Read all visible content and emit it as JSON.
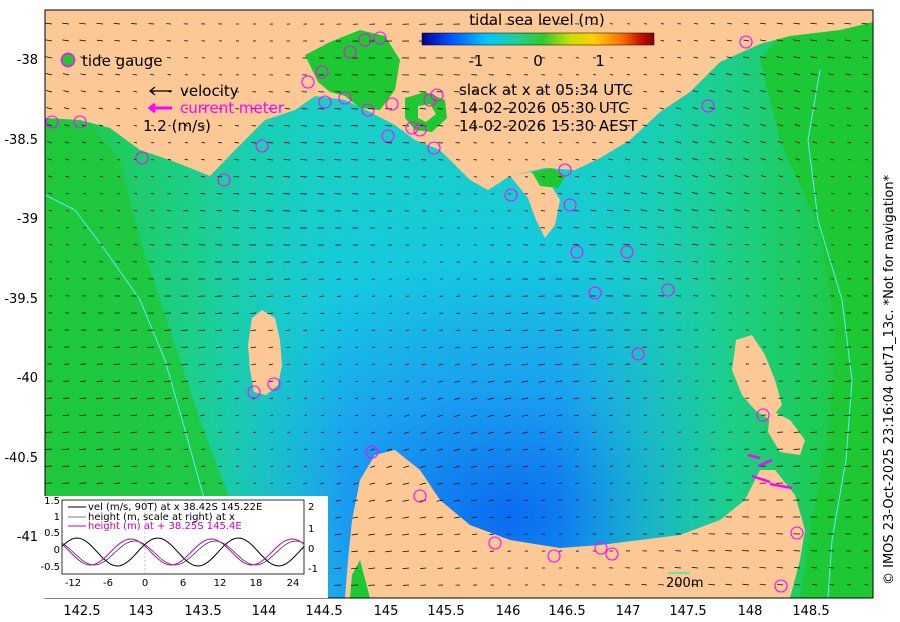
{
  "colorbar": {
    "title": "tidal sea level (m)",
    "ticks": [
      "-1",
      "0",
      "1"
    ],
    "stops": [
      "#00008f",
      "#0050ff",
      "#00c8ff",
      "#1fd08a",
      "#30c830",
      "#c8e000",
      "#ffd000",
      "#ff7000",
      "#c81400",
      "#800000"
    ]
  },
  "legend": {
    "gauge_label": "tide gauge",
    "velocity_label": "velocity",
    "current_meter_label": "current meter",
    "scale_label": "1.2 (m/s)"
  },
  "info": {
    "line1": "slack at x at 05:34 UTC",
    "line2": "14-02-2026 05:30 UTC",
    "line3": "14-02-2026 15:30 AEST"
  },
  "axes": {
    "x_ticks": [
      "142.5",
      "143",
      "143.5",
      "144",
      "144.5",
      "145",
      "145.5",
      "146",
      "146.5",
      "147",
      "147.5",
      "148",
      "148.5"
    ],
    "y_ticks": [
      "-38",
      "-38.5",
      "-39",
      "-39.5",
      "-40",
      "-40.5",
      "-41"
    ]
  },
  "scalebar_label": "200m",
  "credit": "© IMOS 23-Oct-2025 23:16:04 out71_13c. *Not for navigation*",
  "colors": {
    "land": "#fcc896",
    "deep_green": "#1ec832",
    "gauge_ring": "#ff00ff",
    "current": "#ff00ff"
  },
  "inset": {
    "legend": [
      "vel (m/s, 90T) at x 38.42S 145.22E",
      "height (m, scale at right) at x",
      "height (m) at + 38.25S 145.4E"
    ],
    "x_ticks": [
      "-12",
      "-6",
      "0",
      "6",
      "12",
      "18",
      "24"
    ],
    "y_left": [
      "1.5",
      "1",
      "0.5",
      "0",
      "-0.5"
    ],
    "y_right": [
      "2",
      "1",
      "0",
      "-1"
    ]
  }
}
